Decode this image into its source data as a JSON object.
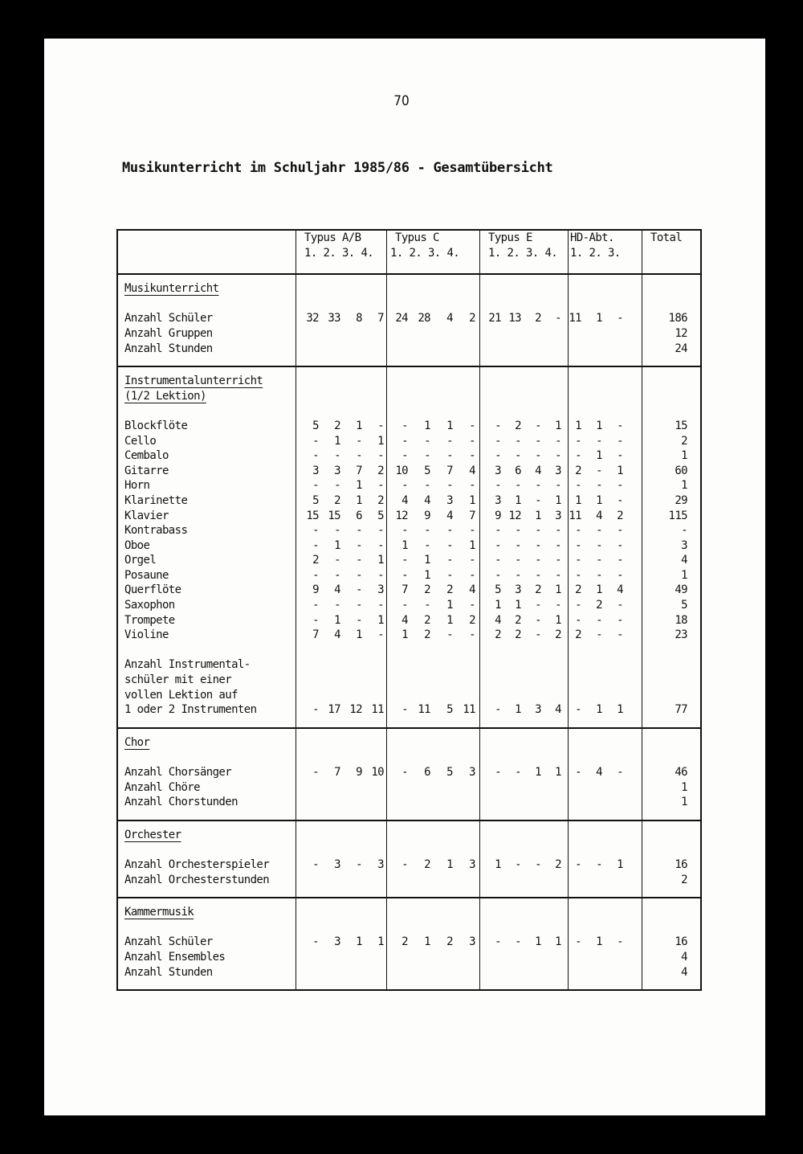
{
  "page_number": "70",
  "title": "Musikunterricht im Schuljahr 1985/86 - Gesamtübersicht",
  "header": {
    "groups": [
      {
        "name": "Typus A/B",
        "years": "1. 2. 3. 4."
      },
      {
        "name": "Typus C",
        "years": "1. 2. 3. 4."
      },
      {
        "name": "Typus E",
        "years": "1. 2. 3. 4."
      },
      {
        "name": "HD-Abt.",
        "years": "1. 2. 3."
      }
    ],
    "total": "Total"
  },
  "sections": [
    {
      "title": [
        "Musikunterricht"
      ],
      "rows": [
        {
          "label": "Anzahl Schüler",
          "ab": [
            "32",
            "33",
            "8",
            "7"
          ],
          "c": [
            "24",
            "28",
            "4",
            "2"
          ],
          "e": [
            "21",
            "13",
            "2",
            "-"
          ],
          "hd": [
            "11",
            "1",
            "-"
          ],
          "total": "186"
        },
        {
          "label": "Anzahl Gruppen",
          "total": "12"
        },
        {
          "label": "Anzahl Stunden",
          "total": "24"
        }
      ]
    },
    {
      "title": [
        "Instrumentalunterricht",
        "(1/2 Lektion)"
      ],
      "rows": [
        {
          "label": "Blockflöte",
          "ab": [
            "5",
            "2",
            "1",
            "-"
          ],
          "c": [
            "-",
            "1",
            "1",
            "-"
          ],
          "e": [
            "-",
            "2",
            "-",
            "1"
          ],
          "hd": [
            "1",
            "1",
            "-"
          ],
          "total": "15"
        },
        {
          "label": "Cello",
          "ab": [
            "-",
            "1",
            "-",
            "1"
          ],
          "c": [
            "-",
            "-",
            "-",
            "-"
          ],
          "e": [
            "-",
            "-",
            "-",
            "-"
          ],
          "hd": [
            "-",
            "-",
            "-"
          ],
          "total": "2"
        },
        {
          "label": "Cembalo",
          "ab": [
            "-",
            "-",
            "-",
            "-"
          ],
          "c": [
            "-",
            "-",
            "-",
            "-"
          ],
          "e": [
            "-",
            "-",
            "-",
            "-"
          ],
          "hd": [
            "-",
            "1",
            "-"
          ],
          "total": "1"
        },
        {
          "label": "Gitarre",
          "ab": [
            "3",
            "3",
            "7",
            "2"
          ],
          "c": [
            "10",
            "5",
            "7",
            "4"
          ],
          "e": [
            "3",
            "6",
            "4",
            "3"
          ],
          "hd": [
            "2",
            "-",
            "1"
          ],
          "total": "60"
        },
        {
          "label": "Horn",
          "ab": [
            "-",
            "-",
            "1",
            "-"
          ],
          "c": [
            "-",
            "-",
            "-",
            "-"
          ],
          "e": [
            "-",
            "-",
            "-",
            "-"
          ],
          "hd": [
            "-",
            "-",
            "-"
          ],
          "total": "1"
        },
        {
          "label": "Klarinette",
          "ab": [
            "5",
            "2",
            "1",
            "2"
          ],
          "c": [
            "4",
            "4",
            "3",
            "1"
          ],
          "e": [
            "3",
            "1",
            "-",
            "1"
          ],
          "hd": [
            "1",
            "1",
            "-"
          ],
          "total": "29"
        },
        {
          "label": "Klavier",
          "ab": [
            "15",
            "15",
            "6",
            "5"
          ],
          "c": [
            "12",
            "9",
            "4",
            "7"
          ],
          "e": [
            "9",
            "12",
            "1",
            "3"
          ],
          "hd": [
            "11",
            "4",
            "2"
          ],
          "total": "115"
        },
        {
          "label": "Kontrabass",
          "ab": [
            "-",
            "-",
            "-",
            "-"
          ],
          "c": [
            "-",
            "-",
            "-",
            "-"
          ],
          "e": [
            "-",
            "-",
            "-",
            "-"
          ],
          "hd": [
            "-",
            "-",
            "-"
          ],
          "total": "-"
        },
        {
          "label": "Oboe",
          "ab": [
            "-",
            "1",
            "-",
            "-"
          ],
          "c": [
            "1",
            "-",
            "-",
            "1"
          ],
          "e": [
            "-",
            "-",
            "-",
            "-"
          ],
          "hd": [
            "-",
            "-",
            "-"
          ],
          "total": "3"
        },
        {
          "label": "Orgel",
          "ab": [
            "2",
            "-",
            "-",
            "1"
          ],
          "c": [
            "-",
            "1",
            "-",
            "-"
          ],
          "e": [
            "-",
            "-",
            "-",
            "-"
          ],
          "hd": [
            "-",
            "-",
            "-"
          ],
          "total": "4"
        },
        {
          "label": "Posaune",
          "ab": [
            "-",
            "-",
            "-",
            "-"
          ],
          "c": [
            "-",
            "1",
            "-",
            "-"
          ],
          "e": [
            "-",
            "-",
            "-",
            "-"
          ],
          "hd": [
            "-",
            "-",
            "-"
          ],
          "total": "1"
        },
        {
          "label": "Querflöte",
          "ab": [
            "9",
            "4",
            "-",
            "3"
          ],
          "c": [
            "7",
            "2",
            "2",
            "4"
          ],
          "e": [
            "5",
            "3",
            "2",
            "1"
          ],
          "hd": [
            "2",
            "1",
            "4"
          ],
          "total": "49"
        },
        {
          "label": "Saxophon",
          "ab": [
            "-",
            "-",
            "-",
            "-"
          ],
          "c": [
            "-",
            "-",
            "1",
            "-"
          ],
          "e": [
            "1",
            "1",
            "-",
            "-"
          ],
          "hd": [
            "-",
            "2",
            "-"
          ],
          "total": "5"
        },
        {
          "label": "Trompete",
          "ab": [
            "-",
            "1",
            "-",
            "1"
          ],
          "c": [
            "4",
            "2",
            "1",
            "2"
          ],
          "e": [
            "4",
            "2",
            "-",
            "1"
          ],
          "hd": [
            "-",
            "-",
            "-"
          ],
          "total": "18"
        },
        {
          "label": "Violine",
          "ab": [
            "7",
            "4",
            "1",
            "-"
          ],
          "c": [
            "1",
            "2",
            "-",
            "-"
          ],
          "e": [
            "2",
            "2",
            "-",
            "2"
          ],
          "hd": [
            "2",
            "-",
            "-"
          ],
          "total": "23"
        },
        {
          "blank": true
        },
        {
          "label": "Anzahl Instrumental-"
        },
        {
          "label": "schüler mit einer"
        },
        {
          "label": "vollen Lektion auf"
        },
        {
          "label": "1 oder 2 Instrumenten",
          "ab": [
            "-",
            "17",
            "12",
            "11"
          ],
          "c": [
            "-",
            "11",
            "5",
            "11"
          ],
          "e": [
            "-",
            "1",
            "3",
            "4"
          ],
          "hd": [
            "-",
            "1",
            "1"
          ],
          "total": "77"
        }
      ]
    },
    {
      "title": [
        "Chor"
      ],
      "rows": [
        {
          "label": "Anzahl Chorsänger",
          "ab": [
            "-",
            "7",
            "9",
            "10"
          ],
          "c": [
            "-",
            "6",
            "5",
            "3"
          ],
          "e": [
            "-",
            "-",
            "1",
            "1"
          ],
          "hd": [
            "-",
            "4",
            "-"
          ],
          "total": "46"
        },
        {
          "label": "Anzahl Chöre",
          "total": "1"
        },
        {
          "label": "Anzahl Chorstunden",
          "total": "1"
        }
      ]
    },
    {
      "title": [
        "Orchester"
      ],
      "rows": [
        {
          "label": "Anzahl Orchesterspieler",
          "ab": [
            "-",
            "3",
            "-",
            "3"
          ],
          "c": [
            "-",
            "2",
            "1",
            "3"
          ],
          "e": [
            "1",
            "-",
            "-",
            "2"
          ],
          "hd": [
            "-",
            "-",
            "1"
          ],
          "total": "16"
        },
        {
          "label": "Anzahl Orchesterstunden",
          "total": "2"
        }
      ]
    },
    {
      "title": [
        "Kammermusik"
      ],
      "rows": [
        {
          "label": "Anzahl Schüler",
          "ab": [
            "-",
            "3",
            "1",
            "1"
          ],
          "c": [
            "2",
            "1",
            "2",
            "3"
          ],
          "e": [
            "-",
            "-",
            "1",
            "1"
          ],
          "hd": [
            "-",
            "1",
            "-"
          ],
          "total": "16"
        },
        {
          "label": "Anzahl Ensembles",
          "total": "4"
        },
        {
          "label": "Anzahl Stunden",
          "total": "4"
        }
      ]
    }
  ]
}
